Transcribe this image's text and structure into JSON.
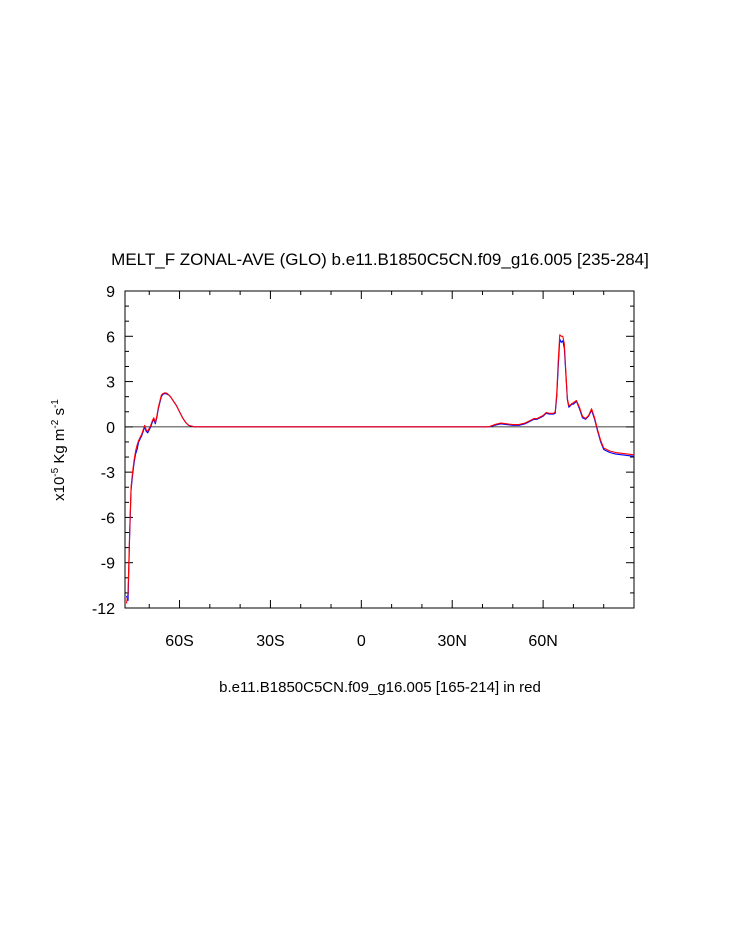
{
  "chart_data": {
    "type": "line",
    "title": "MELT_F ZONAL-AVE (GLO) b.e11.B1850C5CN.f09_g16.005 [235-284]",
    "ylabel": {
      "base": "x10",
      "exp1": "-5",
      "mid1": " Kg m",
      "exp2": "-2",
      "mid2": " s",
      "exp3": "-1"
    },
    "xlabel": "b.e11.B1850C5CN.f09_g16.005 [165-214] in red",
    "xlim": [
      -78,
      90
    ],
    "ylim": [
      -12,
      9
    ],
    "x_ticks": [
      {
        "value": -60,
        "label": "60S"
      },
      {
        "value": -30,
        "label": "30S"
      },
      {
        "value": 0,
        "label": "0"
      },
      {
        "value": 30,
        "label": "30N"
      },
      {
        "value": 60,
        "label": "60N"
      }
    ],
    "y_ticks": [
      {
        "value": 9,
        "label": "9"
      },
      {
        "value": 6,
        "label": "6"
      },
      {
        "value": 3,
        "label": "3"
      },
      {
        "value": 0,
        "label": "0"
      },
      {
        "value": -3,
        "label": "-3"
      },
      {
        "value": -6,
        "label": "-6"
      },
      {
        "value": -9,
        "label": "-9"
      },
      {
        "value": -12,
        "label": "-12"
      }
    ],
    "zero_line": true,
    "series": [
      {
        "color": "#0000ff",
        "x": [
          -77.5,
          -77,
          -76.5,
          -76,
          -75.5,
          -75,
          -74.5,
          -74,
          -73.5,
          -73,
          -72.5,
          -72,
          -71.5,
          -71,
          -70.5,
          -70,
          -69.5,
          -69,
          -68.5,
          -68,
          -67.5,
          -67,
          -66.5,
          -66,
          -65.5,
          -65,
          -64.5,
          -64,
          -63.5,
          -63,
          -62,
          -61,
          -60,
          -59,
          -58,
          -57,
          -56,
          -55,
          -54,
          -53,
          -50,
          0,
          42,
          44,
          46,
          48,
          50,
          52,
          54,
          55,
          56,
          57,
          57.5,
          58,
          59,
          60,
          61,
          62,
          63,
          63.5,
          64,
          64.5,
          65,
          65.5,
          66,
          66.5,
          67,
          67.5,
          68,
          68.5,
          69,
          69.5,
          70,
          71,
          72,
          73,
          74,
          75,
          76,
          77,
          78,
          79,
          80,
          81,
          82,
          84,
          86,
          88,
          90
        ],
        "y": [
          -11.2,
          -11.5,
          -7.5,
          -4.2,
          -3.2,
          -2.4,
          -1.8,
          -1.5,
          -1.0,
          -0.8,
          -0.6,
          -0.3,
          0.0,
          -0.3,
          -0.4,
          -0.2,
          0.0,
          0.3,
          0.5,
          0.2,
          0.6,
          1.2,
          1.6,
          2.0,
          2.15,
          2.2,
          2.2,
          2.15,
          2.1,
          2.0,
          1.7,
          1.4,
          1.0,
          0.6,
          0.3,
          0.1,
          0.05,
          0.0,
          0.0,
          0.0,
          0.0,
          0.0,
          0.0,
          0.1,
          0.2,
          0.15,
          0.1,
          0.1,
          0.2,
          0.3,
          0.4,
          0.5,
          0.5,
          0.5,
          0.6,
          0.7,
          0.9,
          0.85,
          0.85,
          0.85,
          0.9,
          2.0,
          4.0,
          5.8,
          5.6,
          5.7,
          5.2,
          3.5,
          1.8,
          1.3,
          1.4,
          1.5,
          1.5,
          1.7,
          1.2,
          0.6,
          0.5,
          0.7,
          1.1,
          0.5,
          -0.3,
          -1.0,
          -1.5,
          -1.6,
          -1.7,
          -1.8,
          -1.85,
          -1.9,
          -1.95
        ]
      },
      {
        "color": "#ff0000",
        "x": [
          -77.5,
          -77,
          -76.5,
          -76,
          -75.5,
          -75,
          -74.5,
          -74,
          -73.5,
          -73,
          -72.5,
          -72,
          -71.5,
          -71,
          -70.5,
          -70,
          -69.5,
          -69,
          -68.5,
          -68,
          -67.5,
          -67,
          -66.5,
          -66,
          -65.5,
          -65,
          -64.5,
          -64,
          -63.5,
          -63,
          -62,
          -61,
          -60,
          -59,
          -58,
          -57,
          -56,
          -55,
          -54,
          -53,
          -50,
          0,
          42,
          44,
          46,
          48,
          50,
          52,
          54,
          55,
          56,
          57,
          57.5,
          58,
          59,
          60,
          61,
          62,
          63,
          63.5,
          64,
          64.5,
          65,
          65.5,
          66,
          66.5,
          67,
          67.5,
          68,
          68.5,
          69,
          69.5,
          70,
          71,
          72,
          73,
          74,
          75,
          76,
          77,
          78,
          79,
          80,
          81,
          82,
          84,
          86,
          88,
          90
        ],
        "y": [
          -11.7,
          -11.0,
          -7.2,
          -4.0,
          -3.0,
          -2.2,
          -1.6,
          -1.2,
          -0.9,
          -0.7,
          -0.5,
          -0.2,
          0.1,
          -0.2,
          -0.3,
          -0.1,
          0.1,
          0.4,
          0.6,
          0.3,
          0.7,
          1.3,
          1.7,
          2.1,
          2.2,
          2.25,
          2.25,
          2.2,
          2.1,
          2.0,
          1.7,
          1.4,
          1.0,
          0.6,
          0.3,
          0.1,
          0.05,
          0.0,
          0.0,
          0.0,
          0.0,
          0.0,
          0.0,
          0.15,
          0.25,
          0.2,
          0.15,
          0.15,
          0.25,
          0.35,
          0.45,
          0.55,
          0.55,
          0.55,
          0.65,
          0.75,
          0.95,
          0.9,
          0.9,
          0.9,
          1.0,
          2.2,
          4.4,
          6.1,
          6.0,
          6.0,
          5.5,
          3.7,
          1.9,
          1.4,
          1.45,
          1.55,
          1.6,
          1.75,
          1.3,
          0.7,
          0.55,
          0.75,
          1.2,
          0.6,
          -0.2,
          -0.9,
          -1.4,
          -1.5,
          -1.6,
          -1.7,
          -1.75,
          -1.8,
          -1.85
        ]
      }
    ]
  }
}
